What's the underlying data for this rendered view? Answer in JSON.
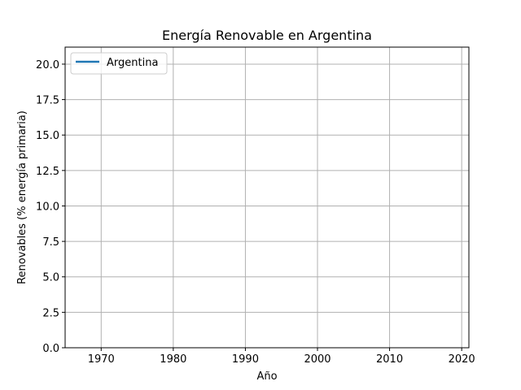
{
  "chart_data": {
    "type": "line",
    "title": "Energía Renovable en Argentina",
    "xlabel": "Año",
    "ylabel": "Renovables (% energía primaria)",
    "xlim": [
      1965,
      2021
    ],
    "ylim": [
      0,
      21.2
    ],
    "x_ticks": [
      {
        "value": 1970,
        "label": "1970"
      },
      {
        "value": 1980,
        "label": "1980"
      },
      {
        "value": 1990,
        "label": "1990"
      },
      {
        "value": 2000,
        "label": "2000"
      },
      {
        "value": 2010,
        "label": "2010"
      },
      {
        "value": 2020,
        "label": "2020"
      }
    ],
    "y_ticks": [
      {
        "value": 0,
        "label": "0.0"
      },
      {
        "value": 2.5,
        "label": "2.5"
      },
      {
        "value": 5,
        "label": "5.0"
      },
      {
        "value": 7.5,
        "label": "7.5"
      },
      {
        "value": 10,
        "label": "10.0"
      },
      {
        "value": 12.5,
        "label": "12.5"
      },
      {
        "value": 15,
        "label": "15.0"
      },
      {
        "value": 17.5,
        "label": "17.5"
      },
      {
        "value": 20,
        "label": "20.0"
      }
    ],
    "grid": true,
    "legend_position": "top-left",
    "series": [
      {
        "name": "Argentina",
        "color": "#1f77b4",
        "x": [],
        "y": []
      }
    ]
  }
}
